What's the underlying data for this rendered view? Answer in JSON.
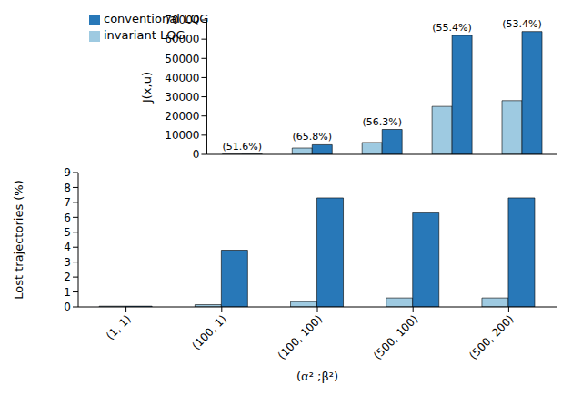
{
  "chart_data": [
    {
      "type": "bar",
      "y_label": "J(x,u)",
      "categories": [
        "(1, 1)",
        "(100, 1)",
        "(100, 100)",
        "(500, 100)",
        "(500, 200)"
      ],
      "series": [
        {
          "name": "invariant LQG",
          "color": "#9ecae1",
          "values": [
            60,
            3300,
            6200,
            25000,
            28000
          ]
        },
        {
          "name": "conventional LQG",
          "color": "#2878b8",
          "values": [
            120,
            5000,
            13000,
            62000,
            64000
          ]
        }
      ],
      "ylim": [
        0,
        70000
      ],
      "yticks": [
        0,
        10000,
        20000,
        30000,
        40000,
        50000,
        60000,
        70000
      ],
      "legend": "upper left",
      "tick_labels": "y",
      "grid": false,
      "annotations": [
        {
          "category": "(1, 1)",
          "text": "(51.6%)"
        },
        {
          "category": "(100, 1)",
          "text": "(65.8%)"
        },
        {
          "category": "(100, 100)",
          "text": "(56.3%)"
        },
        {
          "category": "(500, 100)",
          "text": "(55.4%)"
        },
        {
          "category": "(500, 200)",
          "text": "(53.4%)"
        }
      ]
    },
    {
      "type": "bar",
      "y_label": "Lost trajectories (%)",
      "x_label": "(α² ;β²)",
      "categories": [
        "(1, 1)",
        "(100, 1)",
        "(100, 100)",
        "(500, 100)",
        "(500, 200)"
      ],
      "series": [
        {
          "name": "invariant LQG",
          "color": "#9ecae1",
          "values": [
            0.05,
            0.15,
            0.35,
            0.6,
            0.6
          ]
        },
        {
          "name": "conventional LQG",
          "color": "#2878b8",
          "values": [
            0.05,
            3.8,
            7.3,
            6.3,
            7.3
          ]
        }
      ],
      "ylim": [
        0,
        9
      ],
      "yticks": [
        0,
        1,
        2,
        3,
        4,
        5,
        6,
        7,
        8,
        9
      ],
      "grid": false
    }
  ]
}
